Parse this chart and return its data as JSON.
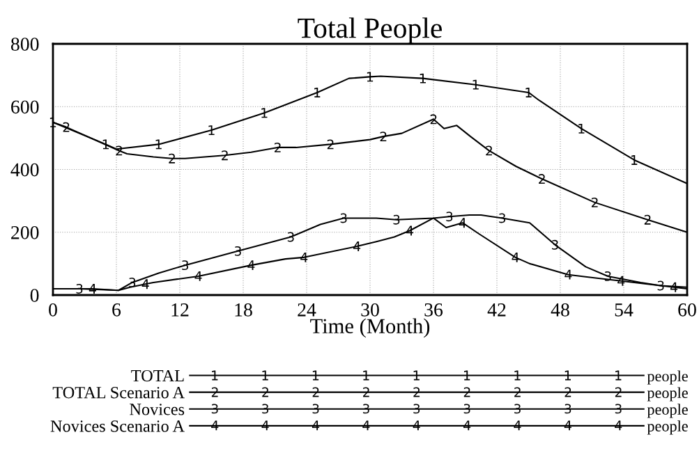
{
  "chart_data": {
    "type": "line",
    "title": "Total People",
    "xlabel": "Time (Month)",
    "xlim": [
      0,
      60
    ],
    "xticks": [
      0,
      6,
      12,
      18,
      24,
      30,
      36,
      42,
      48,
      54,
      60
    ],
    "ylim": [
      0,
      800
    ],
    "yticks": [
      0,
      200,
      400,
      600,
      800
    ],
    "grid": true,
    "legend": "bottom",
    "annotations": [
      "people",
      "people",
      "people",
      "people"
    ],
    "series": [
      {
        "name": "TOTAL",
        "color": "#000000",
        "x": [
          0,
          5,
          6,
          10,
          15,
          20,
          25,
          28,
          30,
          31,
          35,
          40,
          45,
          46,
          50,
          55,
          60
        ],
        "values": [
          550,
          480,
          465,
          480,
          525,
          580,
          645,
          690,
          695,
          697,
          690,
          670,
          645,
          620,
          530,
          430,
          355
        ]
      },
      {
        "name": "TOTAL Scenario A",
        "color": "#000000",
        "x": [
          0,
          1.25,
          6.25,
          7,
          9.5,
          11.25,
          12.5,
          16.25,
          18.75,
          21.25,
          23,
          26.25,
          30,
          31.25,
          33,
          36,
          37,
          38.2,
          39.5,
          41.25,
          43.8,
          46.25,
          51.25,
          56.25,
          60
        ],
        "values": [
          550,
          535,
          460,
          450,
          440,
          435,
          435,
          445,
          455,
          470,
          470,
          480,
          495,
          505,
          515,
          560,
          530,
          540,
          505,
          460,
          410,
          370,
          295,
          240,
          200
        ]
      },
      {
        "name": "Novices",
        "color": "#000000",
        "x": [
          0,
          2.5,
          6.2,
          7.5,
          10,
          12.5,
          17.5,
          22.5,
          25.3,
          27.5,
          30.6,
          32.5,
          36,
          37.5,
          39.4,
          40.5,
          42.5,
          45.1,
          47.5,
          50.4,
          52.5,
          55.6,
          57.5,
          60
        ],
        "values": [
          20,
          20,
          15,
          40,
          70,
          95,
          140,
          185,
          225,
          245,
          245,
          240,
          245,
          250,
          255,
          255,
          245,
          230,
          160,
          90,
          60,
          40,
          30,
          25
        ]
      },
      {
        "name": "Novices Scenario A",
        "color": "#000000",
        "x": [
          0,
          3.75,
          6.2,
          7.3,
          8.75,
          9.5,
          13.75,
          18.75,
          22,
          23.75,
          28.75,
          30.6,
          32.3,
          33.75,
          36,
          37.2,
          38.75,
          40.3,
          43.75,
          45.1,
          48.75,
          51.2,
          53.75,
          58.75,
          60
        ],
        "values": [
          20,
          20,
          15,
          25,
          35,
          40,
          60,
          95,
          115,
          120,
          155,
          170,
          185,
          205,
          245,
          215,
          230,
          195,
          120,
          100,
          65,
          55,
          45,
          25,
          20
        ]
      }
    ]
  }
}
